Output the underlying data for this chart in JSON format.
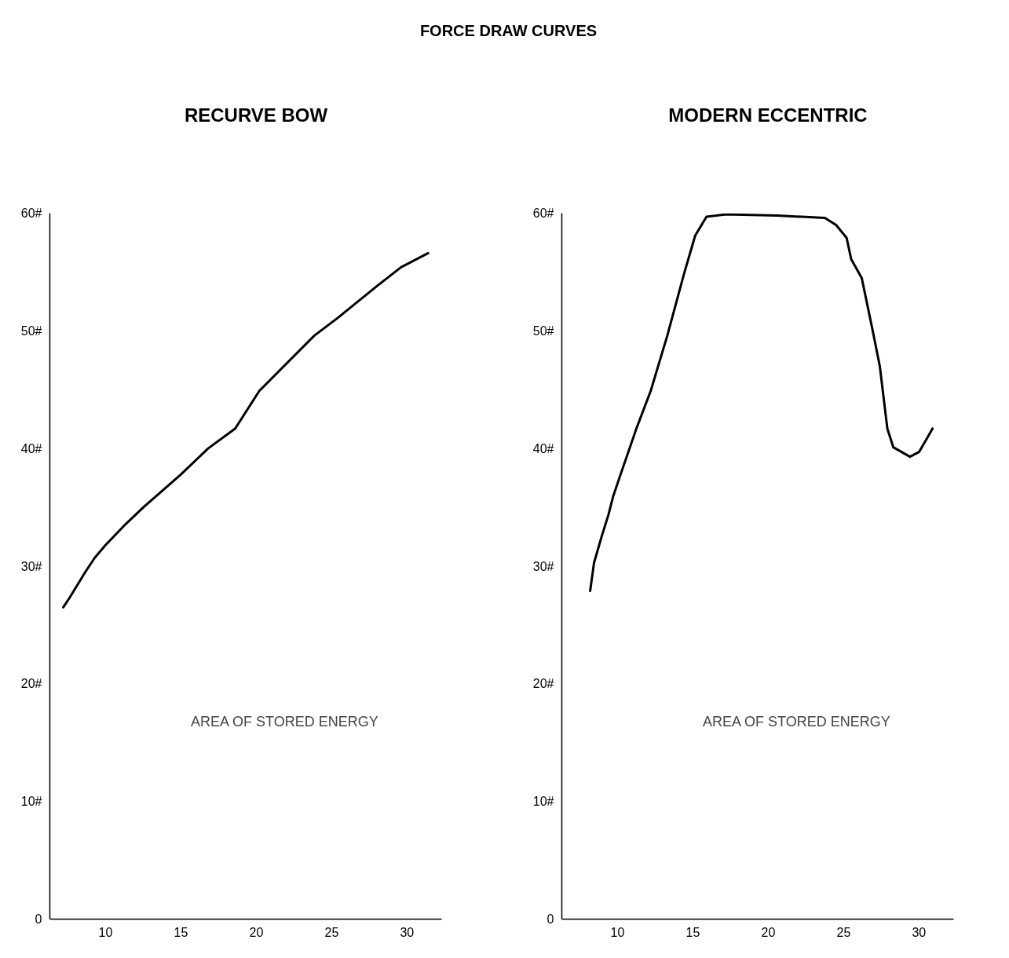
{
  "chart_data": [
    {
      "type": "other",
      "title": "FORCE DRAW CURVES"
    },
    {
      "type": "line",
      "title": "RECURVE BOW",
      "annotations": [
        "AREA OF STORED ENERGY"
      ],
      "x": [
        7.19,
        7.6,
        8.65,
        9.27,
        10,
        11.35,
        12.5,
        15,
        16.8,
        18.6,
        20.2,
        23.85,
        25.4,
        28.0,
        29.6,
        31.4
      ],
      "series": [
        {
          "color": "#000000",
          "values": [
            26.5,
            27.3,
            29.5,
            30.7,
            31.8,
            33.6,
            35.0,
            37.8,
            40.0,
            41.7,
            44.9,
            49.6,
            51.1,
            53.8,
            55.4,
            56.6
          ]
        }
      ],
      "xlim": [
        6.3,
        32.3
      ],
      "ylim": [
        0,
        60
      ],
      "xticks": [
        10,
        15,
        20,
        25,
        30
      ],
      "yticks": [
        0,
        {
          "value": 10,
          "label": "10#"
        },
        {
          "value": 20,
          "label": "20#"
        },
        {
          "value": 30,
          "label": "30#"
        },
        {
          "value": 40,
          "label": "40#"
        },
        {
          "value": 50,
          "label": "50#"
        },
        {
          "value": 60,
          "label": "60#"
        }
      ]
    },
    {
      "type": "line",
      "title": "MODERN ECCENTRIC",
      "annotations": [
        "AREA OF STORED ENERGY"
      ],
      "x": [
        8.18,
        8.44,
        8.96,
        9.4,
        9.7,
        10.2,
        11.25,
        12.2,
        13.3,
        14.4,
        15.15,
        15.9,
        17.2,
        20.6,
        23.75,
        24.5,
        25.2,
        25.5,
        26.2,
        26.9,
        27.4,
        27.9,
        28.3,
        29.4,
        30,
        30.5,
        30.9
      ],
      "series": [
        {
          "color": "#000000",
          "values": [
            27.9,
            30.3,
            32.6,
            34.4,
            35.9,
            37.8,
            41.7,
            44.9,
            49.6,
            54.8,
            58.1,
            59.7,
            59.9,
            59.8,
            59.6,
            59.0,
            57.9,
            56.1,
            54.5,
            50.2,
            47.0,
            41.7,
            40.1,
            39.3,
            39.7,
            40.8,
            41.7
          ]
        }
      ],
      "xlim": [
        6.3,
        32.3
      ],
      "ylim": [
        0,
        60
      ],
      "xticks": [
        10,
        15,
        20,
        25,
        30
      ],
      "yticks": [
        0,
        {
          "value": 10,
          "label": "10#"
        },
        {
          "value": 20,
          "label": "20#"
        },
        {
          "value": 30,
          "label": "30#"
        },
        {
          "value": 40,
          "label": "40#"
        },
        {
          "value": 50,
          "label": "50#"
        },
        {
          "value": 60,
          "label": "60#"
        }
      ],
      "grid": false
    }
  ]
}
